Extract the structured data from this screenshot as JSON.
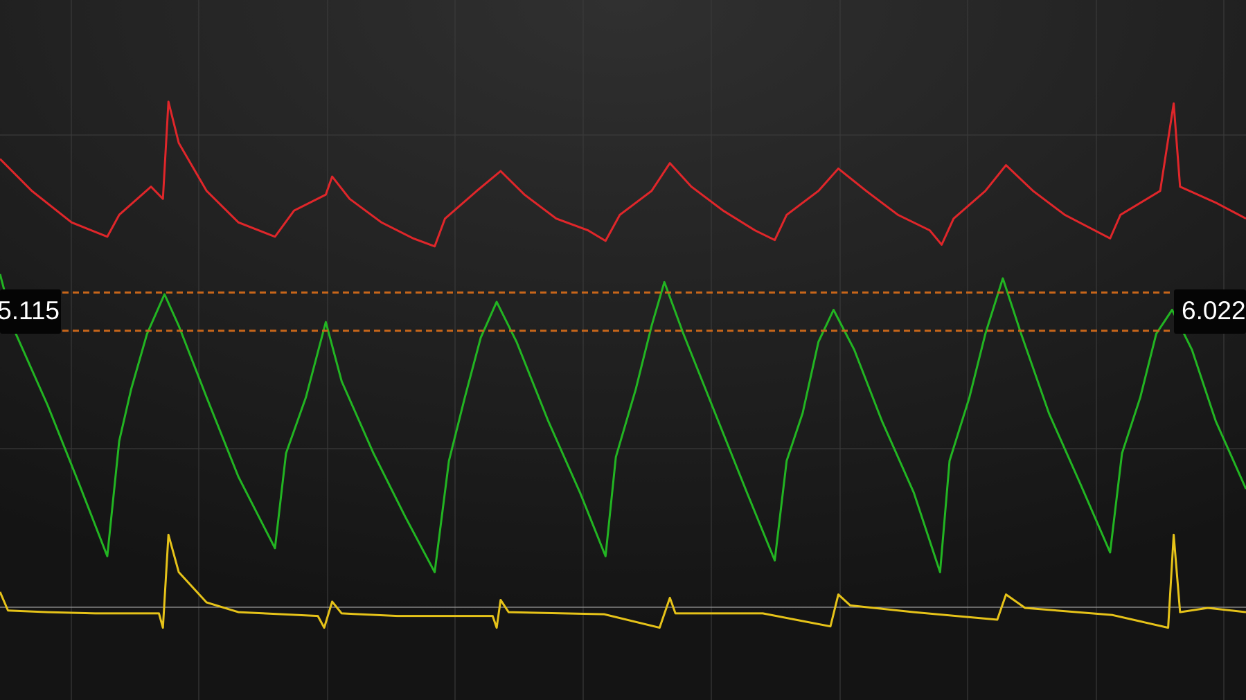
{
  "chart_data": {
    "type": "line",
    "xlim": [
      0,
      1568
    ],
    "ylim": [
      -3.67,
      12.98
    ],
    "series": [
      {
        "name": "red",
        "color": "#e0262a",
        "x": [
          0,
          40,
          90,
          135,
          150,
          190,
          205,
          212,
          225,
          260,
          300,
          346,
          370,
          410,
          418,
          440,
          480,
          520,
          547,
          560,
          600,
          630,
          660,
          700,
          740,
          762,
          780,
          820,
          843,
          870,
          910,
          950,
          975,
          990,
          1030,
          1055,
          1090,
          1130,
          1170,
          1185,
          1200,
          1240,
          1266,
          1300,
          1340,
          1397,
          1410,
          1460,
          1477,
          1485,
          1530,
          1568
        ],
        "values": [
          9.2,
          8.44,
          7.69,
          7.35,
          7.87,
          8.54,
          8.25,
          10.56,
          9.58,
          8.44,
          7.69,
          7.35,
          7.97,
          8.35,
          8.78,
          8.25,
          7.69,
          7.31,
          7.12,
          7.78,
          8.44,
          8.91,
          8.35,
          7.78,
          7.5,
          7.25,
          7.87,
          8.44,
          9.1,
          8.54,
          7.97,
          7.5,
          7.27,
          7.87,
          8.44,
          8.97,
          8.44,
          7.87,
          7.5,
          7.16,
          7.78,
          8.44,
          9.05,
          8.44,
          7.87,
          7.31,
          7.87,
          8.44,
          10.52,
          8.54,
          8.16,
          7.78
        ]
      },
      {
        "name": "green",
        "color": "#22b522",
        "x": [
          0,
          20,
          60,
          100,
          135,
          150,
          165,
          185,
          207,
          225,
          260,
          300,
          346,
          360,
          385,
          410,
          430,
          470,
          510,
          547,
          565,
          585,
          605,
          625,
          650,
          690,
          730,
          762,
          775,
          800,
          820,
          836,
          860,
          900,
          940,
          975,
          990,
          1010,
          1030,
          1049,
          1075,
          1110,
          1150,
          1183,
          1195,
          1220,
          1240,
          1262,
          1285,
          1320,
          1360,
          1397,
          1412,
          1435,
          1455,
          1475,
          1500,
          1530,
          1568
        ],
        "values": [
          6.46,
          5.04,
          3.34,
          1.45,
          -0.25,
          2.49,
          3.72,
          5.04,
          5.98,
          5.23,
          3.53,
          1.64,
          -0.06,
          2.2,
          3.53,
          5.32,
          3.91,
          2.2,
          0.69,
          -0.63,
          2.02,
          3.53,
          4.95,
          5.8,
          4.85,
          2.96,
          1.26,
          -0.25,
          2.11,
          3.72,
          5.23,
          6.27,
          5.04,
          3.15,
          1.26,
          -0.35,
          2.02,
          3.15,
          4.85,
          5.61,
          4.66,
          2.96,
          1.26,
          -0.63,
          2.02,
          3.53,
          5.04,
          6.36,
          5.04,
          3.15,
          1.45,
          -0.16,
          2.2,
          3.53,
          5.04,
          5.61,
          4.66,
          2.96,
          1.35
        ]
      },
      {
        "name": "yellow",
        "color": "#e6c319",
        "x": [
          0,
          10,
          60,
          120,
          200,
          205,
          212,
          225,
          260,
          300,
          400,
          408,
          418,
          430,
          500,
          620,
          625,
          630,
          640,
          760,
          830,
          843,
          850,
          960,
          1045,
          1055,
          1070,
          1150,
          1255,
          1266,
          1290,
          1400,
          1470,
          1477,
          1485,
          1520,
          1568
        ],
        "values": [
          -1.1,
          -1.54,
          -1.58,
          -1.61,
          -1.61,
          -1.95,
          0.26,
          -0.63,
          -1.35,
          -1.58,
          -1.67,
          -1.95,
          -1.33,
          -1.61,
          -1.67,
          -1.67,
          -1.95,
          -1.29,
          -1.58,
          -1.63,
          -1.95,
          -1.24,
          -1.61,
          -1.61,
          -1.92,
          -1.16,
          -1.42,
          -1.58,
          -1.76,
          -1.16,
          -1.48,
          -1.65,
          -1.95,
          0.26,
          -1.58,
          -1.48,
          -1.58
        ]
      }
    ],
    "markers": [
      {
        "value": 5.115,
        "label": "5.115"
      },
      {
        "value": 6.022,
        "label": "6.022"
      }
    ]
  }
}
